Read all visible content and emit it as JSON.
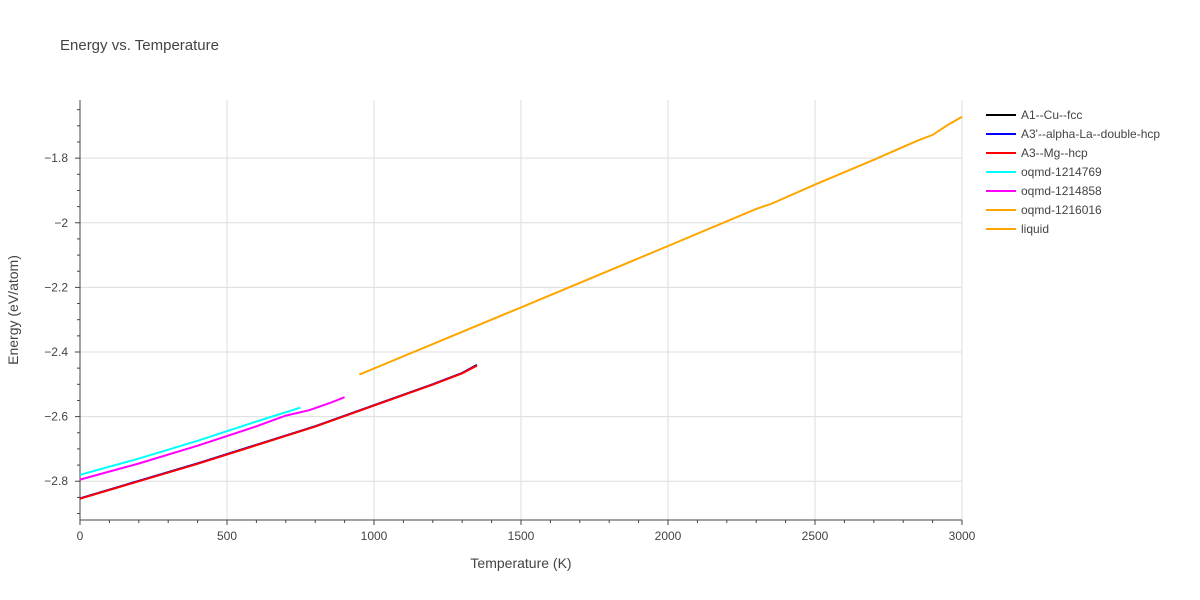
{
  "chart_data": {
    "type": "line",
    "title": "Energy vs. Temperature",
    "xlabel": "Temperature (K)",
    "ylabel": "Energy (eV/atom)",
    "xlim": [
      0,
      3000
    ],
    "ylim": [
      -2.92,
      -1.62
    ],
    "grid": true,
    "legend_position": "top-right",
    "x_ticks": [
      0,
      500,
      1000,
      1500,
      2000,
      2500,
      3000
    ],
    "x_tick_labels": [
      "0",
      "500",
      "1000",
      "1500",
      "2000",
      "2500",
      "3000"
    ],
    "y_ticks": [
      -2.8,
      -2.6,
      -2.4,
      -2.2,
      -2.0,
      -1.8
    ],
    "y_tick_labels": [
      "−2.8",
      "−2.6",
      "−2.4",
      "−2.2",
      "−2",
      "−1.8"
    ],
    "series": [
      {
        "name": "A1--Cu--fcc",
        "color": "#000000",
        "points": [
          [
            0,
            -2.853
          ],
          [
            400,
            -2.745
          ],
          [
            800,
            -2.63
          ],
          [
            1200,
            -2.5
          ],
          [
            1300,
            -2.465
          ],
          [
            1350,
            -2.44
          ]
        ]
      },
      {
        "name": "A3'--alpha-La--double-hcp",
        "color": "#0000ff",
        "points": [
          [
            0,
            -2.853
          ],
          [
            400,
            -2.745
          ],
          [
            800,
            -2.63
          ],
          [
            1200,
            -2.5
          ],
          [
            1300,
            -2.465
          ],
          [
            1350,
            -2.441
          ]
        ]
      },
      {
        "name": "A3--Mg--hcp",
        "color": "#ff0000",
        "points": [
          [
            0,
            -2.854
          ],
          [
            400,
            -2.746
          ],
          [
            800,
            -2.631
          ],
          [
            1200,
            -2.501
          ],
          [
            1300,
            -2.466
          ],
          [
            1350,
            -2.442
          ]
        ]
      },
      {
        "name": "oqmd-1214769",
        "color": "#00ffff",
        "points": [
          [
            0,
            -2.78
          ],
          [
            200,
            -2.73
          ],
          [
            400,
            -2.675
          ],
          [
            600,
            -2.615
          ],
          [
            750,
            -2.572
          ]
        ]
      },
      {
        "name": "oqmd-1214858",
        "color": "#ff00ff",
        "points": [
          [
            0,
            -2.795
          ],
          [
            200,
            -2.745
          ],
          [
            400,
            -2.69
          ],
          [
            600,
            -2.63
          ],
          [
            700,
            -2.597
          ],
          [
            780,
            -2.58
          ],
          [
            850,
            -2.558
          ],
          [
            900,
            -2.54
          ]
        ]
      },
      {
        "name": "oqmd-1216016",
        "color": "#ffa500",
        "points": []
      },
      {
        "name": "liquid",
        "color": "#ffa500",
        "points": [
          [
            950,
            -2.47
          ],
          [
            1500,
            -2.262
          ],
          [
            2000,
            -2.072
          ],
          [
            2300,
            -1.957
          ],
          [
            2350,
            -1.942
          ],
          [
            2500,
            -1.882
          ],
          [
            2700,
            -1.805
          ],
          [
            2850,
            -1.745
          ],
          [
            2900,
            -1.728
          ],
          [
            2950,
            -1.698
          ],
          [
            3000,
            -1.672
          ]
        ]
      }
    ]
  }
}
